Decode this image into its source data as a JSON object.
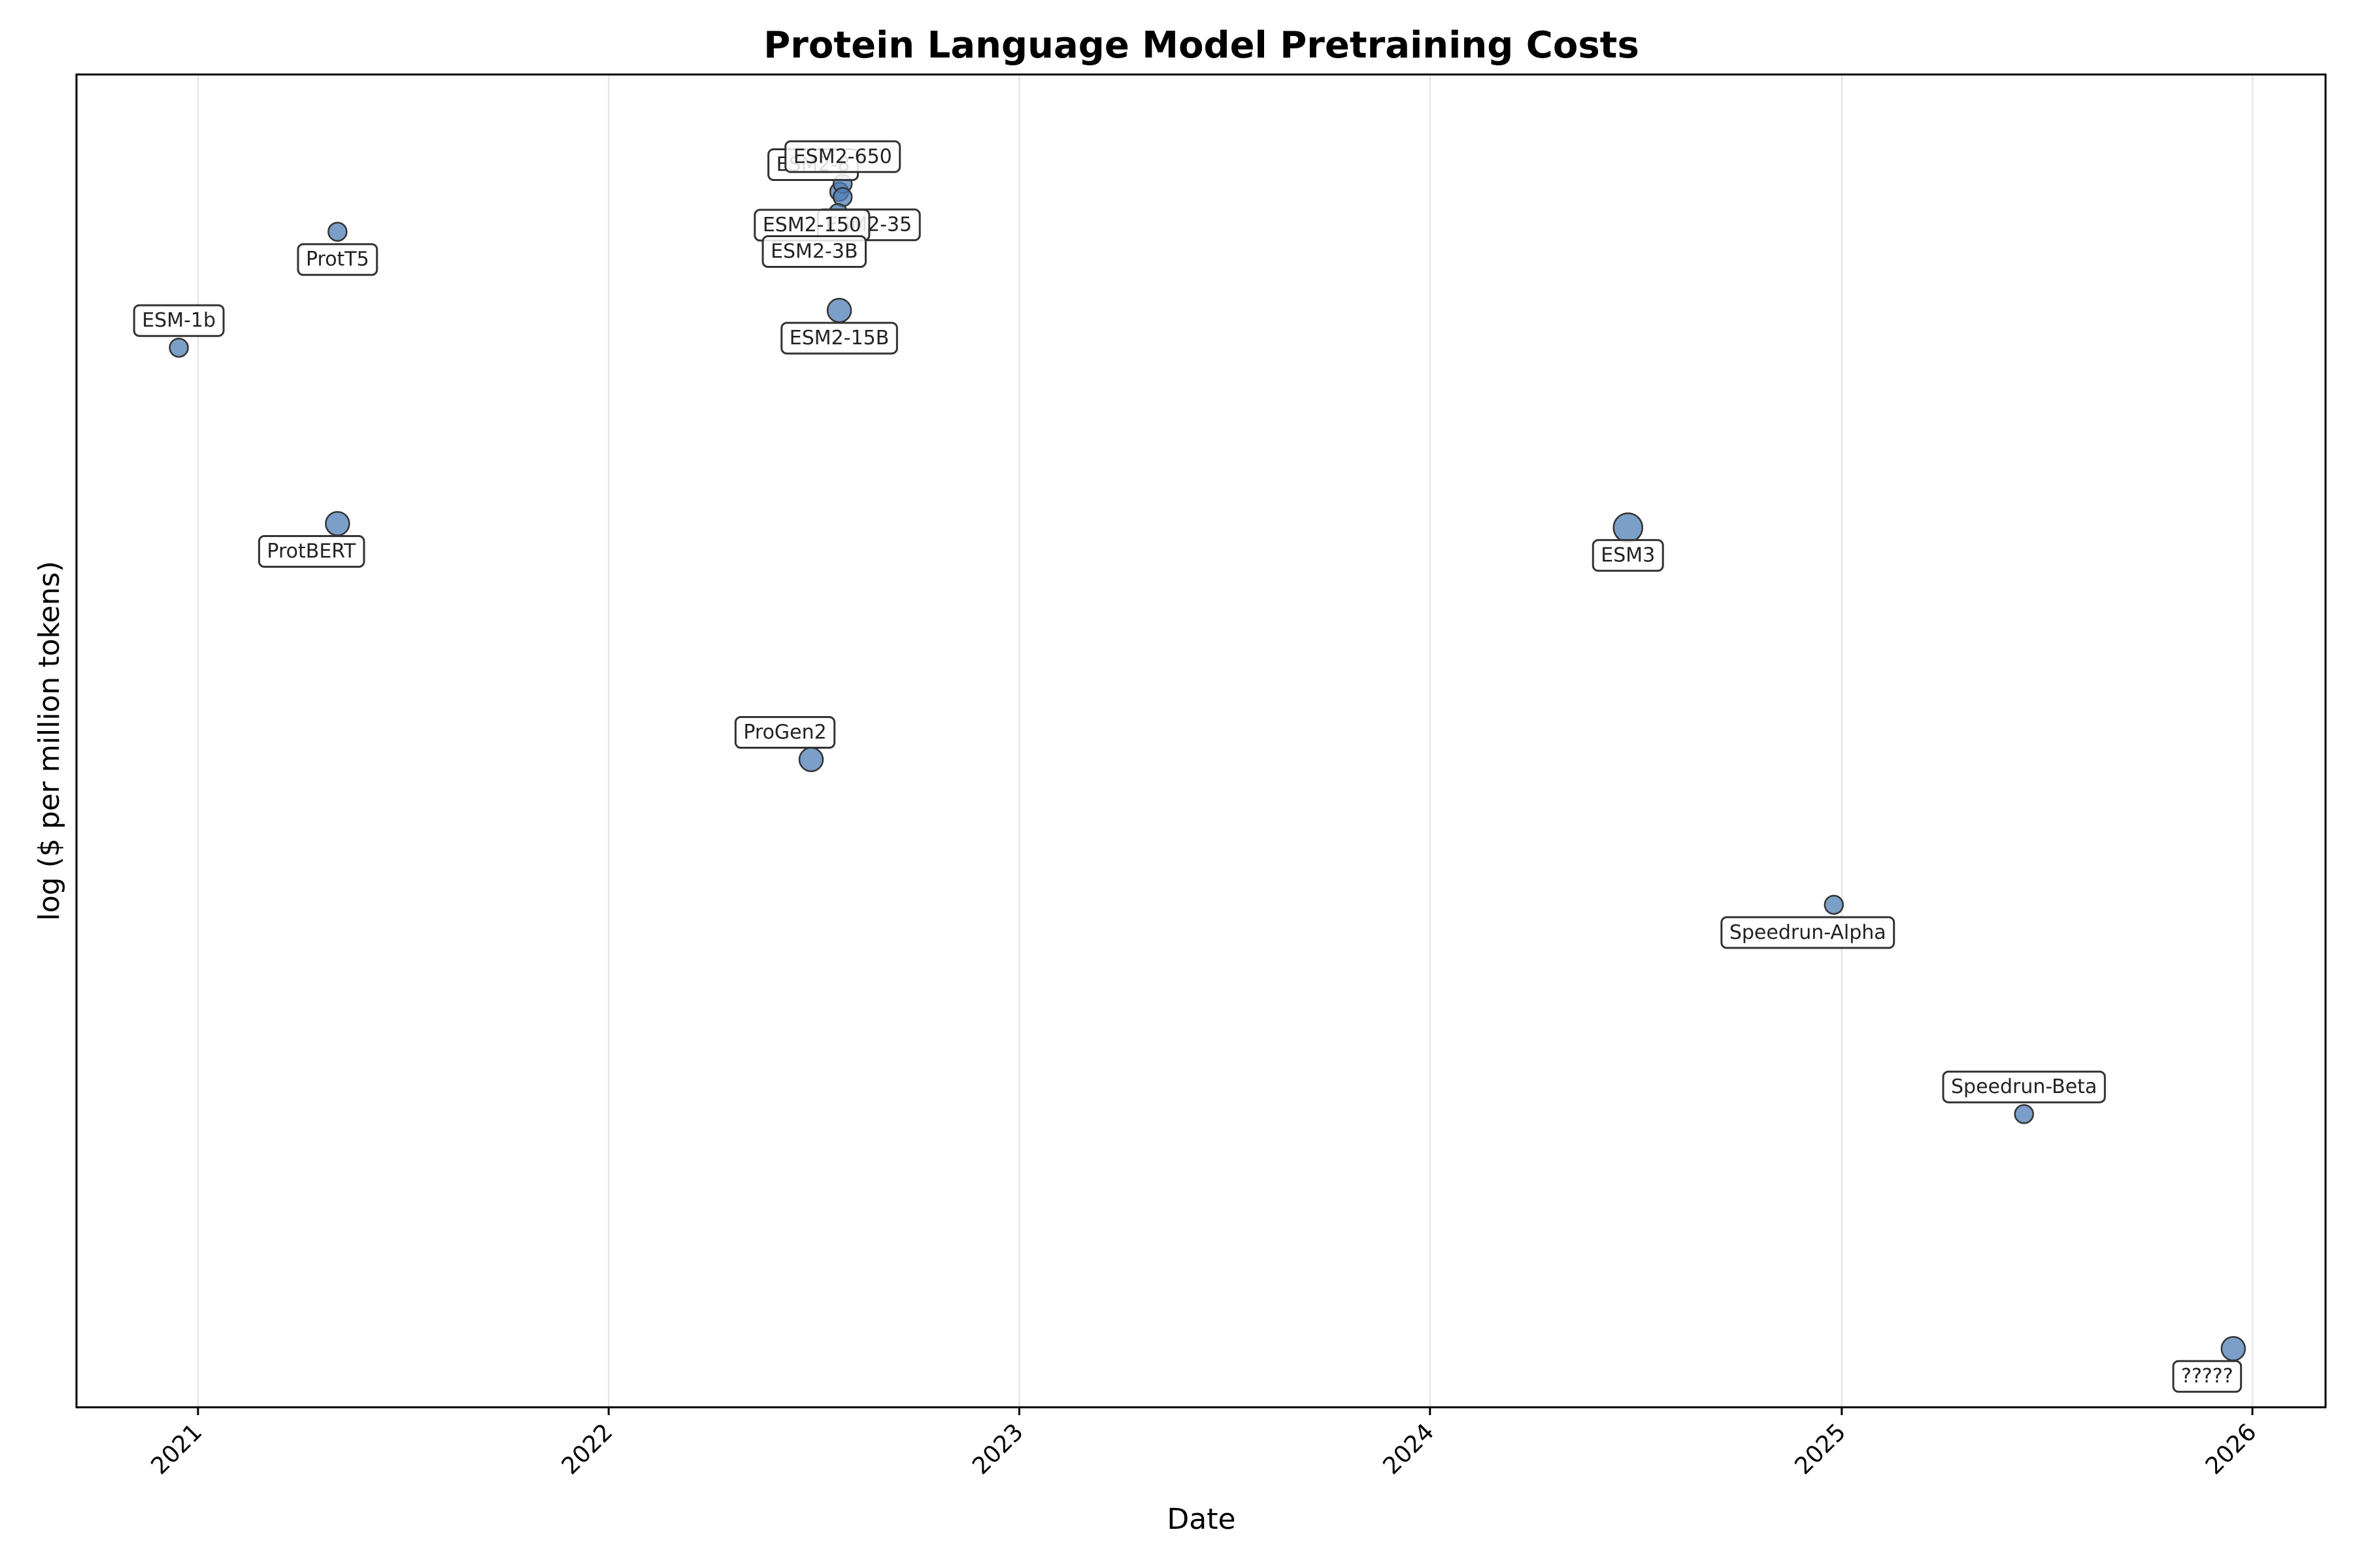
{
  "chart_data": {
    "type": "scatter",
    "title": "Protein Language Model Pretraining Costs",
    "xlabel": "Date",
    "ylabel": "log ($ per million tokens)",
    "x_ticks": [
      "2021-01-01",
      "2022-01-01",
      "2023-01-01",
      "2024-01-01",
      "2025-01-01",
      "2026-01-01"
    ],
    "x_tick_labels": [
      "2021",
      "2022",
      "2023",
      "2024",
      "2025",
      "2026"
    ],
    "xlim": [
      "2020-09-15",
      "2026-03-07"
    ],
    "y_relative_range": [
      0,
      1
    ],
    "y_tick_labels": [],
    "grid": "vertical only",
    "point_color": "#4f7fb5",
    "points": [
      {
        "label": "ESM-1b",
        "x": "2020-12-15",
        "y": 0.795,
        "size": "small",
        "label_pos": "above"
      },
      {
        "label": "ProtT5",
        "x": "2021-05-05",
        "y": 0.882,
        "size": "small",
        "label_pos": "below"
      },
      {
        "label": "ProtBERT",
        "x": "2021-05-05",
        "y": 0.663,
        "size": "medium",
        "label_pos": "below-left"
      },
      {
        "label": "ESM2-8",
        "x": "2022-07-25",
        "y": 0.912,
        "size": "small",
        "label_pos": "above-left"
      },
      {
        "label": "ESM2-650",
        "x": "2022-07-28",
        "y": 0.918,
        "size": "small",
        "label_pos": "above"
      },
      {
        "label": "ESM2-35",
        "x": "2022-07-28",
        "y": 0.908,
        "size": "small",
        "label_pos": "below-right"
      },
      {
        "label": "ESM2-150",
        "x": "2022-07-24",
        "y": 0.896,
        "size": "small",
        "label_pos": "left"
      },
      {
        "label": "ESM2-3B",
        "x": "2022-07-26",
        "y": 0.888,
        "size": "small",
        "label_pos": "below-left"
      },
      {
        "label": "ESM2-15B",
        "x": "2022-07-25",
        "y": 0.823,
        "size": "medium",
        "label_pos": "below"
      },
      {
        "label": "ProGen2",
        "x": "2022-06-30",
        "y": 0.486,
        "size": "medium",
        "label_pos": "above-left"
      },
      {
        "label": "ESM3",
        "x": "2024-06-25",
        "y": 0.66,
        "size": "large",
        "label_pos": "below"
      },
      {
        "label": "Speedrun-Alpha",
        "x": "2024-12-25",
        "y": 0.377,
        "size": "small",
        "label_pos": "below-left"
      },
      {
        "label": "Speedrun-Beta",
        "x": "2025-06-12",
        "y": 0.22,
        "size": "small",
        "label_pos": "above"
      },
      {
        "label": "?????",
        "x": "2025-12-15",
        "y": 0.044,
        "size": "medium",
        "label_pos": "below-left"
      }
    ]
  }
}
